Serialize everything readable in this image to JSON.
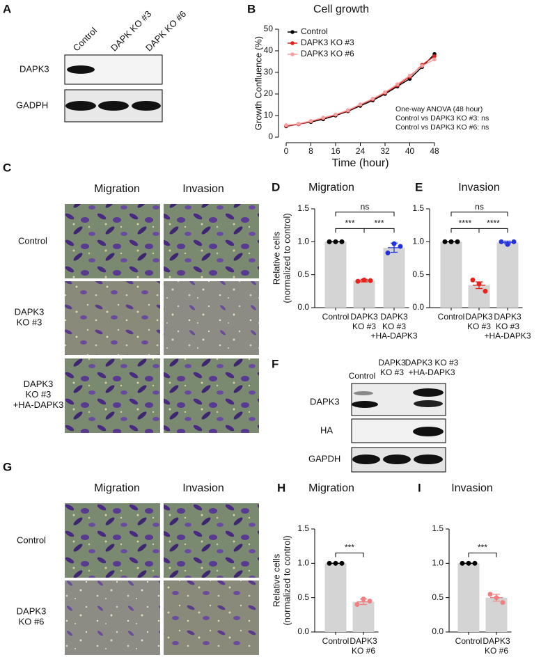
{
  "panel_letters": [
    "A",
    "B",
    "C",
    "D",
    "E",
    "F",
    "G",
    "H",
    "I"
  ],
  "blot_a": {
    "lanes": [
      "Control",
      "DAPK KO #3",
      "DAPK KO #6"
    ],
    "rows": [
      "DAPK3",
      "GADPH"
    ]
  },
  "blot_f": {
    "lanes": [
      "Control",
      "DAPK3\nKO #3",
      "DAPK3 KO #3\n+HA-DAPK3"
    ],
    "rows": [
      "DAPK3",
      "HA",
      "GAPDH"
    ]
  },
  "images_c": {
    "columns": [
      "Migration",
      "Invasion"
    ],
    "rows": [
      "Control",
      "DAPK3\nKO #3",
      "DAPK3\nKO #3\n+HA-DAPK3"
    ]
  },
  "images_g": {
    "columns": [
      "Migration",
      "Invasion"
    ],
    "rows": [
      "Control",
      "DAPK3\nKO #6"
    ]
  },
  "chart_data": [
    {
      "type": "line",
      "title": "Cell growth",
      "xlabel": "Time (hour)",
      "ylabel": "Growth Confluence (%)",
      "x": [
        0,
        4,
        8,
        12,
        16,
        20,
        24,
        28,
        32,
        36,
        40,
        44,
        48
      ],
      "series": [
        {
          "name": "Control",
          "color": "#000000",
          "values": [
            5,
            6,
            7,
            8.3,
            10,
            12,
            14.5,
            17,
            20,
            23.5,
            27,
            32.5,
            38.5
          ]
        },
        {
          "name": "DAPK3 KO #3",
          "color": "#e0201b",
          "values": [
            5.2,
            6,
            7.3,
            8.8,
            10.3,
            12.2,
            15,
            17.5,
            20.5,
            24,
            28,
            33.5,
            37.5
          ]
        },
        {
          "name": "DAPK3 KO #6",
          "color": "#f4a0a0",
          "values": [
            5.5,
            6.2,
            7.5,
            9,
            10.5,
            12.5,
            15.2,
            17.8,
            20.8,
            24.5,
            28.5,
            33,
            36
          ]
        }
      ],
      "xlim": [
        0,
        48
      ],
      "xticks": [
        0,
        8,
        16,
        24,
        32,
        40,
        48
      ],
      "ylim": [
        0,
        50
      ],
      "yticks": [
        0,
        10,
        20,
        30,
        40,
        50
      ],
      "annotations": [
        "One-way ANOVA (48 hour)",
        "Control vs DAPK3 KO #3: ns",
        "Control vs DAPK3 KO #6: ns"
      ]
    },
    {
      "type": "bar",
      "title": "Migration",
      "ylabel": [
        "Relative cells",
        "(normalized to control)"
      ],
      "categories": [
        "Control",
        "DAPK3\nKO #3",
        "DAPK3\nKO #3\n+HA-DAPK3"
      ],
      "values": [
        1.0,
        0.41,
        0.91
      ],
      "errors": [
        0,
        0.02,
        0.07
      ],
      "points": [
        [
          1,
          1,
          1
        ],
        [
          0.4,
          0.42,
          0.41
        ],
        [
          0.83,
          0.97,
          0.93
        ]
      ],
      "bar_color": "#d4d4d4",
      "colors": [
        "#000000",
        "#e8221c",
        "#2233dd"
      ],
      "ylim": [
        0,
        1.5
      ],
      "yticks": [
        {
          "value": 0,
          "label": "0.0"
        },
        0.5,
        {
          "value": 1,
          "label": "1.0"
        },
        1.5
      ],
      "significance": [
        "***",
        "***",
        "ns"
      ]
    },
    {
      "type": "bar",
      "title": "Invasion",
      "categories": [
        "Control",
        "DAPK3\nKO #3",
        "DAPK3\nKO #3\n+HA-DAPK3"
      ],
      "values": [
        1.0,
        0.34,
        0.99
      ],
      "errors": [
        0,
        0.05,
        0.02
      ],
      "points": [
        [
          1,
          1,
          1
        ],
        [
          0.42,
          0.36,
          0.25
        ],
        [
          1.0,
          0.96,
          1.0
        ]
      ],
      "bar_color": "#d4d4d4",
      "colors": [
        "#000000",
        "#e8221c",
        "#2233dd"
      ],
      "ylim": [
        0,
        1.5
      ],
      "yticks": [
        {
          "value": 0,
          "label": "0.0"
        },
        0.5,
        {
          "value": 1,
          "label": "1.0"
        },
        1.5
      ],
      "significance": [
        "****",
        "****",
        "ns"
      ]
    },
    {
      "type": "bar",
      "title": "Migration",
      "ylabel": [
        "Relative cells",
        "(normalized to control)"
      ],
      "categories": [
        "Control",
        "DAPK3\nKO #6"
      ],
      "values": [
        1.0,
        0.44
      ],
      "errors": [
        0,
        0.04
      ],
      "points": [
        [
          1,
          1,
          1
        ],
        [
          0.4,
          0.48,
          0.45
        ]
      ],
      "bar_color": "#d4d4d4",
      "colors": [
        "#000000",
        "#f08080"
      ],
      "ylim": [
        0,
        1.5
      ],
      "yticks": [
        {
          "value": 0,
          "label": "0.0"
        },
        0.5,
        {
          "value": 1,
          "label": "1.0"
        },
        1.5
      ],
      "significance": [
        "***"
      ]
    },
    {
      "type": "bar",
      "title": "Invasion",
      "categories": [
        "Control",
        "DAPK3\nKO #6"
      ],
      "values": [
        1.0,
        0.5
      ],
      "errors": [
        0,
        0.05
      ],
      "points": [
        [
          1,
          1,
          1
        ],
        [
          0.55,
          0.5,
          0.43
        ]
      ],
      "bar_color": "#d4d4d4",
      "colors": [
        "#000000",
        "#f08080"
      ],
      "ylim": [
        0,
        1.5
      ],
      "yticks": [
        {
          "value": 0,
          "label": "0.0"
        },
        0.5,
        {
          "value": 1,
          "label": "1.0"
        },
        1.5
      ],
      "significance": [
        "***"
      ]
    }
  ]
}
